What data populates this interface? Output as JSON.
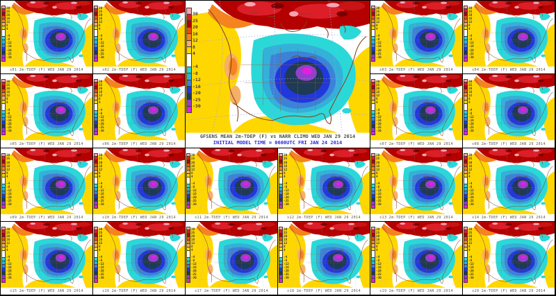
{
  "colorbar": {
    "labels": [
      "30",
      "25",
      "20",
      "16",
      "12",
      "8",
      "4",
      "-4",
      "-8",
      "-12",
      "-16",
      "-20",
      "-25",
      "-30"
    ],
    "colors": [
      "#f4a6b0",
      "#dc1e28",
      "#b00008",
      "#e6500f",
      "#f5831e",
      "#f5b066",
      "#ffd700",
      "#ffffff",
      "#2ad8d8",
      "#35b0d8",
      "#3c82d8",
      "#2038dc",
      "#1e3a55",
      "#9240cc",
      "#e020e0"
    ]
  },
  "main_panel": {
    "title_line1": "GFSENS MEAN 2m-TDEP (F) vs NARR CLIMO WED JAN 29 2014",
    "title_line2": "INITIAL MODEL TIME = 0600UTC FRI JAN 24 2014",
    "title_line2_color": "#2828d8"
  },
  "panels": [
    {
      "id": "s01",
      "label": "s01 2m-TDEP (F) WED JAN 29 2014"
    },
    {
      "id": "s02",
      "label": "s02 2m-TDEP (F) WED JAN 29 2014"
    },
    {
      "id": "s03",
      "label": "s03 2m-TDEP (F) WED JAN 29 2014"
    },
    {
      "id": "s04",
      "label": "s04 2m-TDEP (F) WED JAN 29 2014"
    },
    {
      "id": "s05",
      "label": "s05 2m-TDEP (F) WED JAN 29 2014"
    },
    {
      "id": "s06",
      "label": "s06 2m-TDEP (F) WED JAN 29 2014"
    },
    {
      "id": "s07",
      "label": "s07 2m-TDEP (F) WED JAN 29 2014"
    },
    {
      "id": "s08",
      "label": "s08 2m-TDEP (F) WED JAN 29 2014"
    },
    {
      "id": "s09",
      "label": "s09 2m-TDEP (F) WED JAN 29 2014"
    },
    {
      "id": "s10",
      "label": "s10 2m-TDEP (F) WED JAN 29 2014"
    },
    {
      "id": "s11",
      "label": "s11 2m-TDEP (F) WED JAN 29 2014"
    },
    {
      "id": "s12",
      "label": "s12 2m-TDEP (F) WED JAN 29 2014"
    },
    {
      "id": "s13",
      "label": "s13 2m-TDEP (F) WED JAN 29 2014"
    },
    {
      "id": "s14",
      "label": "s14 2m-TDEP (F) WED JAN 29 2014"
    },
    {
      "id": "s15",
      "label": "s15 2m-TDEP (F) WED JAN 29 2014"
    },
    {
      "id": "s16",
      "label": "s16 2m-TDEP (F) WED JAN 29 2014"
    },
    {
      "id": "s17",
      "label": "s17 2m-TDEP (F) WED JAN 29 2014"
    },
    {
      "id": "s18",
      "label": "s18 2m-TDEP (F) WED JAN 29 2014"
    },
    {
      "id": "s19",
      "label": "s19 2m-TDEP (F) WED JAN 29 2014"
    },
    {
      "id": "s20",
      "label": "s20 2m-TDEP (F) WED JAN 29 2014"
    }
  ]
}
